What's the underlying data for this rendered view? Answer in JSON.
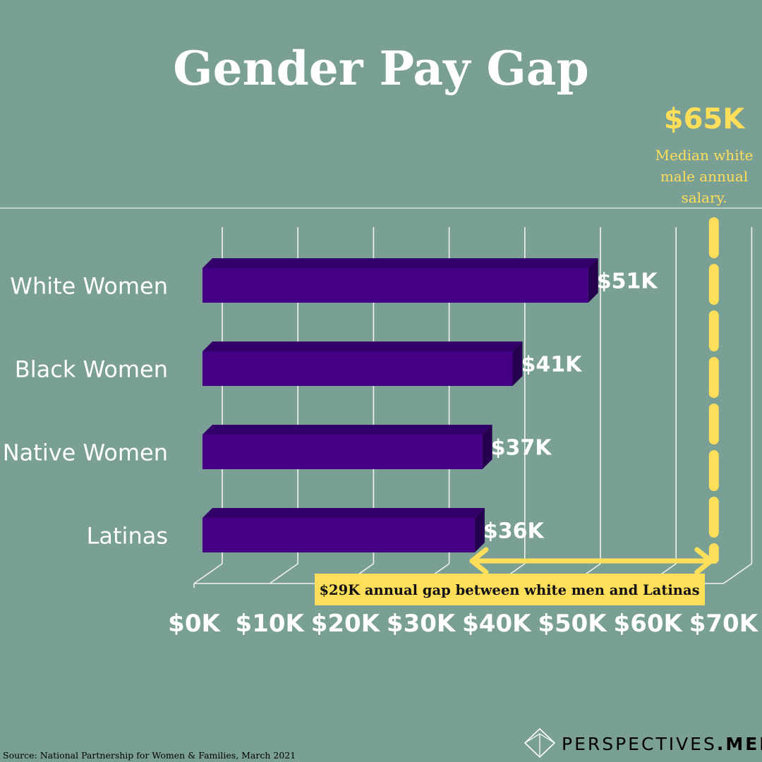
{
  "colors": {
    "background": "#7a9f94",
    "bar_front": "#430085",
    "bar_top": "#33006a",
    "bar_side": "#25004f",
    "accent_yellow": "#ffdf5a",
    "grid": "#f2f2f2",
    "text": "#ffffff"
  },
  "chart_data": {
    "type": "bar",
    "orientation": "horizontal",
    "title": "Gender Pay Gap",
    "categories": [
      "White Women",
      "Black Women",
      "Native Women",
      "Latinas"
    ],
    "values": [
      51,
      41,
      37,
      36
    ],
    "value_labels": [
      "$51K",
      "$41K",
      "$37K",
      "$36K"
    ],
    "xlim": [
      0,
      70
    ],
    "x_ticks": [
      0,
      10,
      20,
      30,
      40,
      50,
      60,
      70
    ],
    "x_tick_labels": [
      "$0K",
      "$10K",
      "$20K",
      "$30K",
      "$40K",
      "$50K",
      "$60K",
      "$70K"
    ],
    "grid": true,
    "reference_line": {
      "value": 65,
      "label": "$65K",
      "description": "Median white male annual salary."
    },
    "gap_annotation": {
      "from": 36,
      "to": 65,
      "label": "$29K annual gap between white men and Latinas"
    }
  },
  "source": "Source:  National Partnership for Women & Families, March 2021",
  "brand": {
    "logo_icon": "diamond-logo-icon",
    "name_main": "PERSPECTIVES",
    "name_suffix": ".MEDIA"
  }
}
